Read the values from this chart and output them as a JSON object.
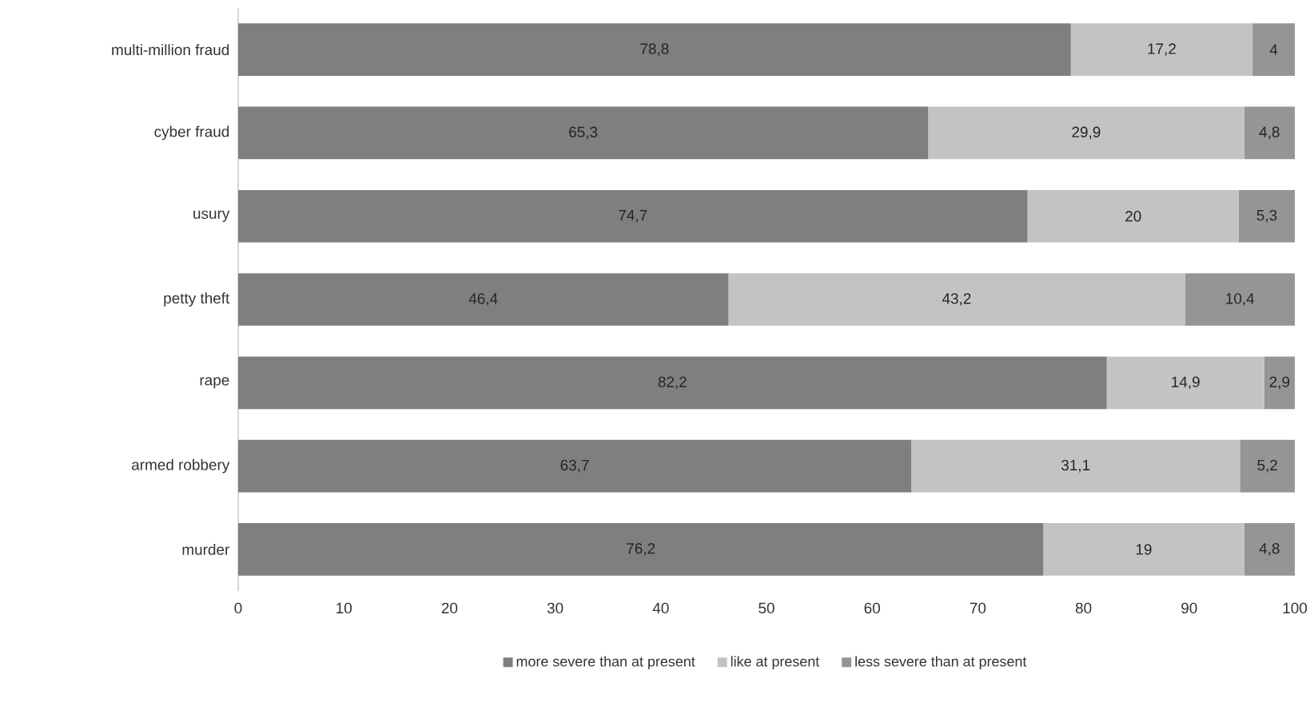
{
  "chart_data": {
    "type": "bar",
    "orientation": "horizontal",
    "stacked": true,
    "categories": [
      "multi-million fraud",
      "cyber fraud",
      "usury",
      "petty theft",
      "rape",
      "armed robbery",
      "murder"
    ],
    "series": [
      {
        "name": "more severe than at present",
        "color": "#7f7f7f",
        "values": [
          78.8,
          65.3,
          74.7,
          46.4,
          82.2,
          63.7,
          76.2
        ],
        "value_labels": [
          "78,8",
          "65,3",
          "74,7",
          "46,4",
          "82,2",
          "63,7",
          "76,2"
        ]
      },
      {
        "name": "like at present",
        "color": "#c3c3c3",
        "values": [
          17.2,
          29.9,
          20,
          43.2,
          14.9,
          31.1,
          19
        ],
        "value_labels": [
          "17,2",
          "29,9",
          "20",
          "43,2",
          "14,9",
          "31,1",
          "19"
        ]
      },
      {
        "name": "less severe than at present",
        "color": "#959595",
        "values": [
          4,
          4.8,
          5.3,
          10.4,
          2.9,
          5.2,
          4.8
        ],
        "value_labels": [
          "4",
          "4,8",
          "5,3",
          "10,4",
          "2,9",
          "5,2",
          "4,8"
        ]
      }
    ],
    "xlim": [
      0,
      100
    ],
    "xticks": [
      0,
      10,
      20,
      30,
      40,
      50,
      60,
      70,
      80,
      90,
      100
    ],
    "legend": "bottom"
  }
}
